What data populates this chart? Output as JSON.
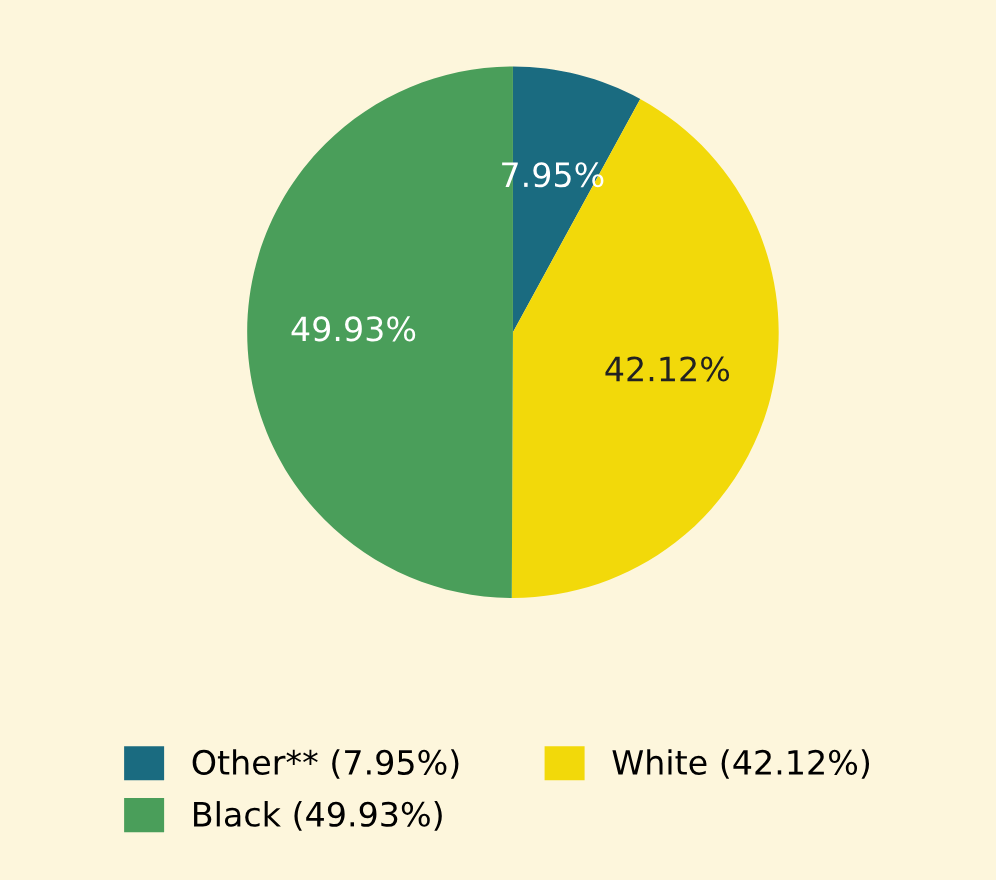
{
  "chart_data": {
    "type": "pie",
    "categories": [
      "Other** (7.95%)",
      "White (42.12%)",
      "Black (49.93%)"
    ],
    "values": [
      7.95,
      42.12,
      49.93
    ],
    "colors": [
      "#1a6b80",
      "#f2d90a",
      "#4a9e5a"
    ],
    "value_labels": [
      "7.95%",
      "42.12%",
      "49.93%"
    ],
    "legend": "bottom"
  }
}
